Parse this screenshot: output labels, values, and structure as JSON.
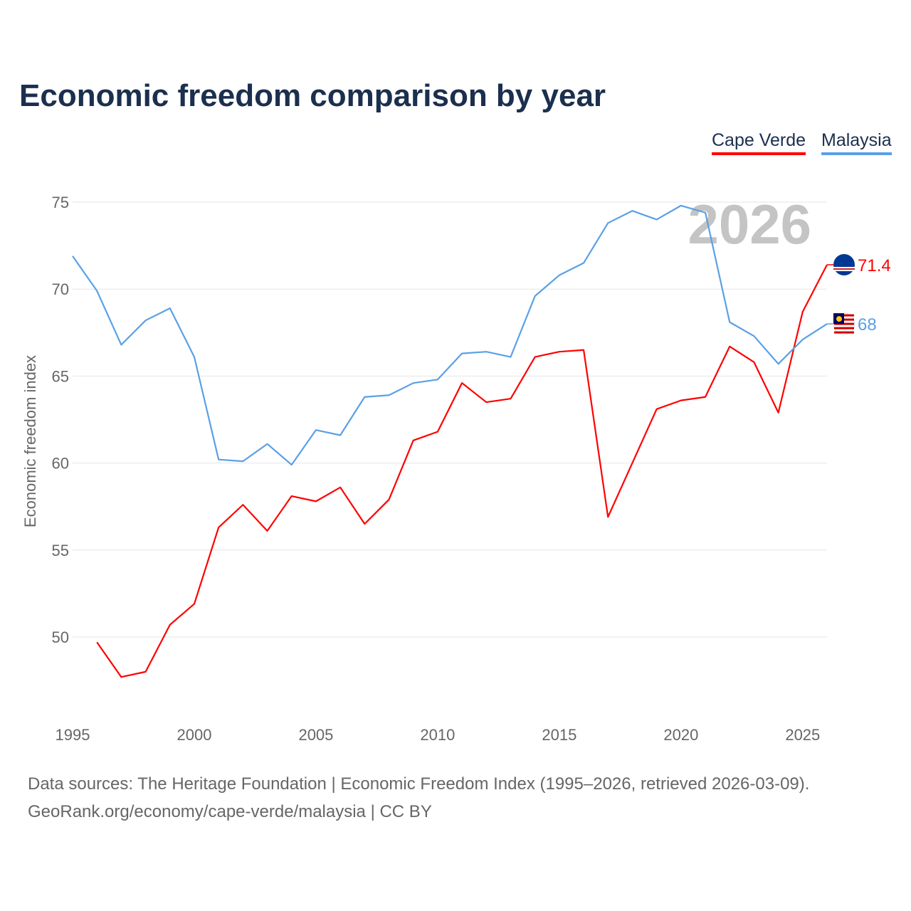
{
  "chart_data": {
    "type": "line",
    "title": "Economic freedom comparison by year",
    "xlabel": "",
    "ylabel": "Economic freedom index",
    "xlim": [
      1995,
      2026
    ],
    "ylim": [
      45.3,
      77
    ],
    "x_ticks": [
      "1995",
      "2000",
      "2005",
      "2010",
      "2015",
      "2020",
      "2025"
    ],
    "y_ticks": [
      "50",
      "55",
      "60",
      "65",
      "70",
      "75"
    ],
    "grid": true,
    "legend_position": "top-right",
    "year_watermark": "2026",
    "series": [
      {
        "name": "Cape Verde",
        "color": "#ff0000",
        "end_label": "71.4",
        "x": [
          1996,
          1997,
          1998,
          1999,
          2000,
          2001,
          2002,
          2003,
          2004,
          2005,
          2006,
          2007,
          2008,
          2009,
          2010,
          2011,
          2012,
          2013,
          2014,
          2015,
          2016,
          2017,
          2018,
          2019,
          2020,
          2021,
          2022,
          2023,
          2024,
          2025,
          2026
        ],
        "values": [
          49.7,
          47.7,
          48.0,
          50.7,
          51.9,
          56.3,
          57.6,
          56.1,
          58.1,
          57.8,
          58.6,
          56.5,
          57.9,
          61.3,
          61.8,
          64.6,
          63.5,
          63.7,
          66.1,
          66.4,
          66.5,
          56.9,
          60.0,
          63.1,
          63.6,
          63.8,
          66.7,
          65.8,
          62.9,
          68.7,
          71.4
        ]
      },
      {
        "name": "Malaysia",
        "color": "#5aa0e6",
        "end_label": "68",
        "x": [
          1995,
          1996,
          1997,
          1998,
          1999,
          2000,
          2001,
          2002,
          2003,
          2004,
          2005,
          2006,
          2007,
          2008,
          2009,
          2010,
          2011,
          2012,
          2013,
          2014,
          2015,
          2016,
          2017,
          2018,
          2019,
          2020,
          2021,
          2022,
          2023,
          2024,
          2025,
          2026
        ],
        "values": [
          71.9,
          69.9,
          66.8,
          68.2,
          68.9,
          66.1,
          60.2,
          60.1,
          61.1,
          59.9,
          61.9,
          61.6,
          63.8,
          63.9,
          64.6,
          64.8,
          66.3,
          66.4,
          66.1,
          69.6,
          70.8,
          71.5,
          73.8,
          74.5,
          74.0,
          74.8,
          74.4,
          68.1,
          67.3,
          65.7,
          67.1,
          68.0
        ]
      }
    ]
  },
  "footer": {
    "line1": "Data sources: The Heritage Foundation | Economic Freedom Index (1995–2026, retrieved 2026-03-09).",
    "line2": "GeoRank.org/economy/cape-verde/malaysia | CC BY"
  }
}
